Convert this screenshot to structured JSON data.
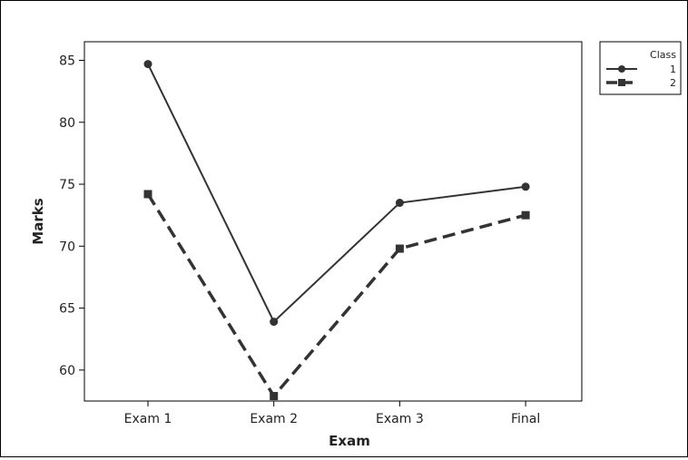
{
  "chart_data": {
    "type": "line",
    "xlabel": "Exam",
    "ylabel": "Marks",
    "categories": [
      "Exam 1",
      "Exam 2",
      "Exam 3",
      "Final"
    ],
    "yticks": [
      60,
      65,
      70,
      75,
      80,
      85
    ],
    "ylim": [
      57.5,
      86.5
    ],
    "grid": false,
    "legend": {
      "title": "Class",
      "placement": "top-right, outside plot"
    },
    "series": [
      {
        "name": "1",
        "values": [
          84.7,
          63.9,
          73.5,
          74.8
        ],
        "line": "solid",
        "marker": "circle",
        "color": "#333333"
      },
      {
        "name": "2",
        "values": [
          74.2,
          57.9,
          69.8,
          72.5
        ],
        "line": "dashed",
        "marker": "square",
        "color": "#333333"
      }
    ]
  }
}
